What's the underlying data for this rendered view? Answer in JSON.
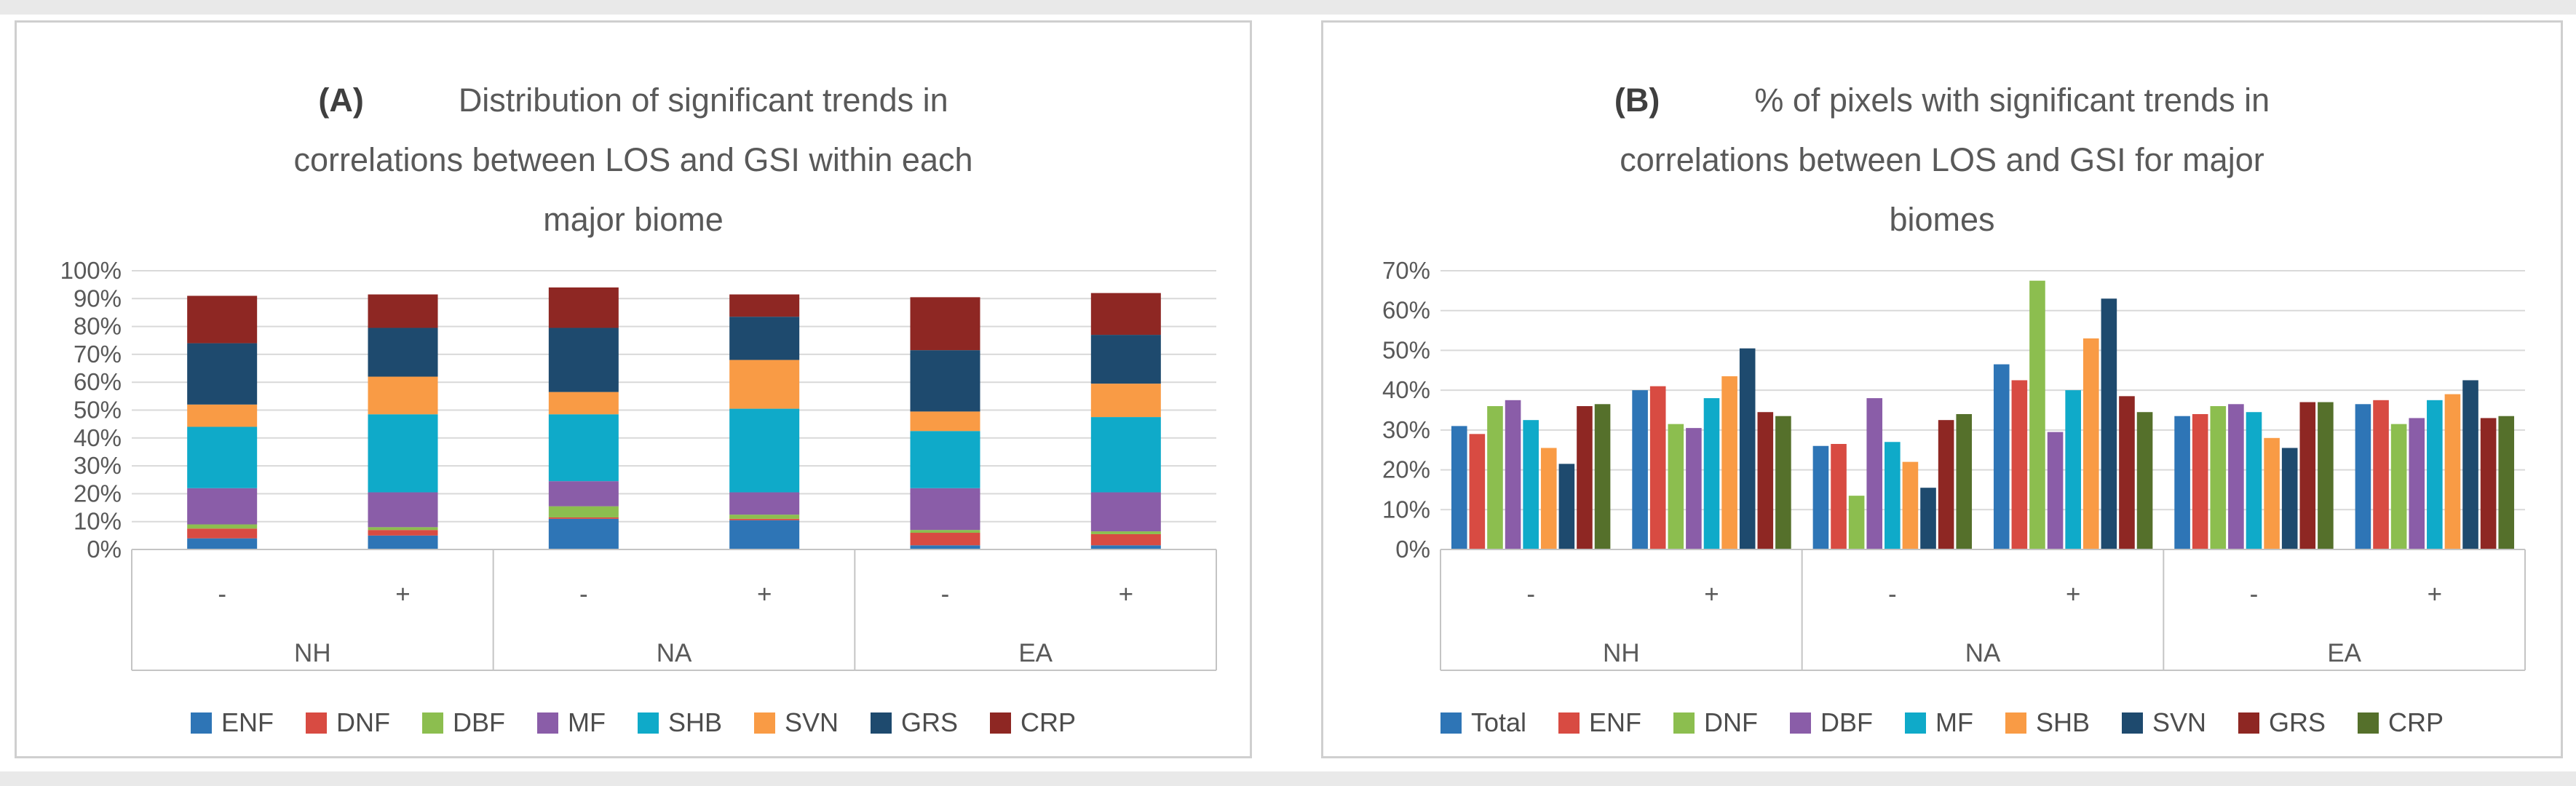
{
  "page": {
    "margin_strip_color": "#e9e9e9",
    "panel_border_color": "#cfcfcf",
    "gridline_color": "#d9d9d9",
    "axis_line_color": "#c4c4c4",
    "text_color": "#595959"
  },
  "chart_data": [
    {
      "id": "A",
      "type": "bar",
      "subtype": "stacked-percent",
      "panel_label": "(A)",
      "title_lines": [
        "Distribution of significant trends in",
        "correlations between LOS and GSI within each",
        "major biome"
      ],
      "ylabel": "",
      "xlabel": "",
      "ylim": [
        0,
        100
      ],
      "grid": true,
      "legend_position": "bottom",
      "y_axis": {
        "min": 0,
        "max": 100,
        "step": 10,
        "tick_labels": [
          "0%",
          "10%",
          "20%",
          "30%",
          "40%",
          "50%",
          "60%",
          "70%",
          "80%",
          "90%",
          "100%"
        ]
      },
      "groups": [
        "NH",
        "NA",
        "EA"
      ],
      "subgroups": [
        "-",
        "+"
      ],
      "categories": [
        "NH -",
        "NH +",
        "NA -",
        "NA +",
        "EA -",
        "EA +"
      ],
      "series": [
        {
          "name": "ENF",
          "color": "#2E75B6",
          "values": [
            4,
            5,
            11,
            10.5,
            1.5,
            1.5
          ]
        },
        {
          "name": "DNF",
          "color": "#D84B42",
          "values": [
            3.5,
            2,
            0.5,
            0.5,
            4.5,
            4
          ]
        },
        {
          "name": "DBF",
          "color": "#8CBE4F",
          "values": [
            1.5,
            1,
            4,
            1.5,
            1,
            1
          ]
        },
        {
          "name": "MF",
          "color": "#8A5DA8",
          "values": [
            13,
            12.5,
            9,
            8,
            15,
            14
          ]
        },
        {
          "name": "SHB",
          "color": "#0FAAC9",
          "values": [
            22,
            28,
            24,
            30,
            20.5,
            27
          ]
        },
        {
          "name": "SVN",
          "color": "#F99B45",
          "values": [
            8,
            13.5,
            8,
            17.5,
            7,
            12
          ]
        },
        {
          "name": "GRS",
          "color": "#1E4A6E",
          "values": [
            22,
            17.5,
            23,
            15.5,
            22,
            17.5
          ]
        },
        {
          "name": "CRP",
          "color": "#8E2723",
          "values": [
            17,
            12,
            14.5,
            8,
            19,
            15
          ]
        }
      ]
    },
    {
      "id": "B",
      "type": "bar",
      "subtype": "grouped",
      "panel_label": "(B)",
      "title_lines": [
        "% of pixels with significant trends in",
        "correlations between LOS and GSI for major",
        "biomes"
      ],
      "ylabel": "",
      "xlabel": "",
      "ylim": [
        0,
        70
      ],
      "grid": true,
      "legend_position": "bottom",
      "y_axis": {
        "min": 0,
        "max": 70,
        "step": 10,
        "tick_labels": [
          "0%",
          "10%",
          "20%",
          "30%",
          "40%",
          "50%",
          "60%",
          "70%"
        ]
      },
      "groups": [
        "NH",
        "NA",
        "EA"
      ],
      "subgroups": [
        "-",
        "+"
      ],
      "categories": [
        "NH -",
        "NH +",
        "NA -",
        "NA +",
        "EA -",
        "EA +"
      ],
      "series": [
        {
          "name": "Total",
          "color": "#2E75B6",
          "values": [
            31,
            40,
            26,
            46.5,
            33.5,
            36.5
          ]
        },
        {
          "name": "ENF",
          "color": "#D84B42",
          "values": [
            29,
            41,
            26.5,
            42.5,
            34,
            37.5
          ]
        },
        {
          "name": "DNF",
          "color": "#8CBE4F",
          "values": [
            36,
            31.5,
            13.5,
            67.5,
            36,
            31.5
          ]
        },
        {
          "name": "DBF",
          "color": "#8A5DA8",
          "values": [
            37.5,
            30.5,
            38,
            29.5,
            36.5,
            33
          ]
        },
        {
          "name": "MF",
          "color": "#0FAAC9",
          "values": [
            32.5,
            38,
            27,
            40,
            34.5,
            37.5
          ]
        },
        {
          "name": "SHB",
          "color": "#F99B45",
          "values": [
            25.5,
            43.5,
            22,
            53,
            28,
            39
          ]
        },
        {
          "name": "SVN",
          "color": "#1E4A6E",
          "values": [
            21.5,
            50.5,
            15.5,
            63,
            25.5,
            42.5
          ]
        },
        {
          "name": "GRS",
          "color": "#8E2723",
          "values": [
            36,
            34.5,
            32.5,
            38.5,
            37,
            33
          ]
        },
        {
          "name": "CRP",
          "color": "#55702B",
          "values": [
            36.5,
            33.5,
            34,
            34.5,
            37,
            33.5
          ]
        }
      ]
    }
  ]
}
